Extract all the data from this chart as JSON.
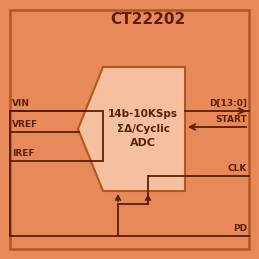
{
  "bg_color": "#E8895A",
  "outer_border_color": "#B05820",
  "chip_bg": "#E8895A",
  "adc_fill": "#F5C0A0",
  "adc_border": "#B05820",
  "line_color": "#5A2000",
  "text_color": "#5A2000",
  "title": "CT22202",
  "adc_line1": "14b-10KSps",
  "adc_line2": "ΣΔ/Cyclic",
  "adc_line3": "ADC",
  "fig_bg": "#E8895A"
}
